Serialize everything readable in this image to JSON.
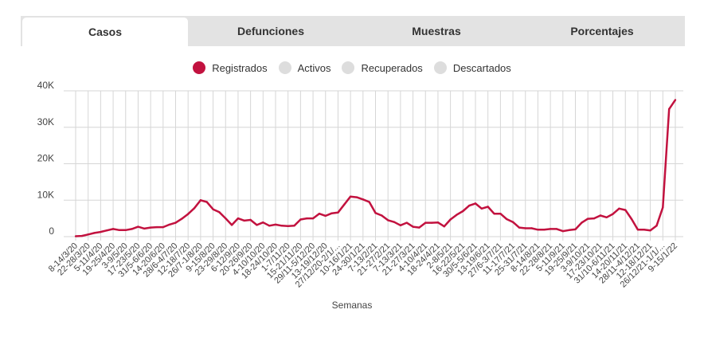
{
  "tabs": [
    {
      "label": "Casos",
      "active": true
    },
    {
      "label": "Defunciones",
      "active": false
    },
    {
      "label": "Muestras",
      "active": false
    },
    {
      "label": "Porcentajes",
      "active": false
    }
  ],
  "legend": [
    {
      "label": "Registrados",
      "color": "#c2123f",
      "active": true
    },
    {
      "label": "Activos",
      "color": "#dddddd",
      "active": false
    },
    {
      "label": "Recuperados",
      "color": "#dddddd",
      "active": false
    },
    {
      "label": "Descartados",
      "color": "#dddddd",
      "active": false
    }
  ],
  "chart_data": {
    "type": "line",
    "xlabel": "Semanas",
    "ylabel": "",
    "ylim": [
      0,
      40000
    ],
    "yticks": [
      {
        "value": 0,
        "label": "0"
      },
      {
        "value": 10000,
        "label": "10K"
      },
      {
        "value": 20000,
        "label": "20K"
      },
      {
        "value": 30000,
        "label": "30K"
      },
      {
        "value": 40000,
        "label": "40K"
      }
    ],
    "grid": true,
    "legend_position": "top",
    "x_tick_labels": [
      "8-14/3/20",
      "22-28/3/20",
      "5-11/4/20",
      "19-25/4/20",
      "3-9/5/20",
      "17-23/5/20",
      "31/5-6/6/20",
      "14-20/6/20",
      "28/6-4/7/20",
      "12-18/7/20",
      "26/7-1/8/20",
      "9-15/8/20",
      "23-29/8/20",
      "6-12/9/20",
      "20-26/9/20",
      "4-10/10/20",
      "18-24/10/20",
      "1-7/11/20",
      "15-21/11/20",
      "29/11-5/12/20",
      "13-19/12/20",
      "27/12/20-2/1/...",
      "10-16/1/21",
      "24-30/1/21",
      "7-13/2/21",
      "21-27/2/21",
      "7-13/3/21",
      "21-27/3/21",
      "4-10/4/21",
      "18-24/4/21",
      "2-8/5/21",
      "16-22/5/21",
      "30/5-5/6/21",
      "13-19/6/21",
      "27/6-3/7/21",
      "11-17/7/21",
      "25-31/7/21",
      "8-14/8/21",
      "22-28/8/21",
      "5-11/9/21",
      "19-25/9/21",
      "3-9/10/21",
      "17-23/10/21",
      "31/10-6/11/21",
      "14-20/11/21",
      "28/11-4/12/21",
      "12-18/12/21",
      "26/12/21-1/1/...",
      "9-15/1/22"
    ],
    "series": [
      {
        "name": "Registrados",
        "color": "#c2123f",
        "values": [
          100,
          200,
          600,
          1000,
          1300,
          1700,
          2100,
          1800,
          1800,
          2100,
          2700,
          2200,
          2500,
          2600,
          2600,
          3300,
          3800,
          4900,
          6200,
          7800,
          10000,
          9500,
          7500,
          6700,
          5000,
          3200,
          5000,
          4400,
          4600,
          3200,
          3900,
          3000,
          3300,
          3000,
          2900,
          3000,
          4700,
          5000,
          5000,
          6300,
          5700,
          6400,
          6600,
          8800,
          11000,
          10800,
          10200,
          9500,
          6500,
          5800,
          4500,
          4000,
          3100,
          3800,
          2700,
          2500,
          3800,
          3800,
          3900,
          2800,
          4700,
          6000,
          7000,
          8500,
          9100,
          7700,
          8200,
          6300,
          6300,
          4800,
          4000,
          2500,
          2300,
          2300,
          1900,
          1900,
          2100,
          2100,
          1500,
          1800,
          2000,
          3800,
          4900,
          5000,
          5800,
          5300,
          6200,
          7700,
          7300,
          4800,
          1900,
          1900,
          1700,
          3000,
          8000,
          35000,
          37500
        ]
      }
    ]
  }
}
